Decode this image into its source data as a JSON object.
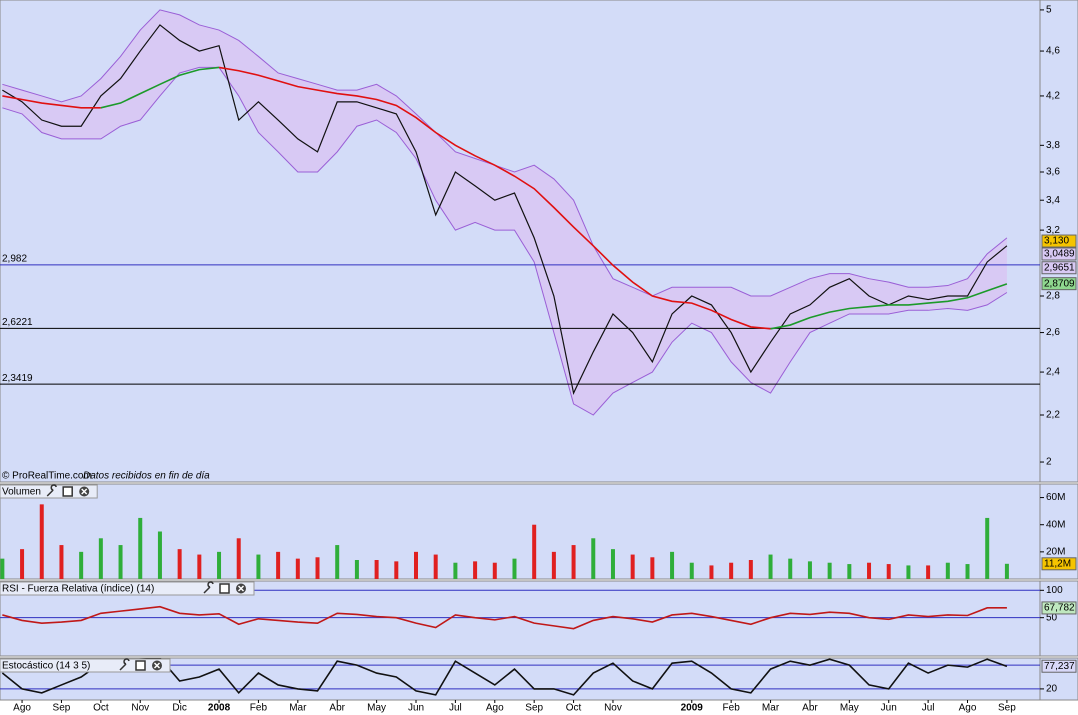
{
  "chart_data": [
    {
      "type": "line",
      "log": true,
      "credit": "© ProRealTime.com",
      "note": "Datos recibidos en fin de día",
      "x": [
        -0.5,
        0,
        0.5,
        1,
        1.5,
        2,
        2.5,
        3,
        3.5,
        4,
        4.5,
        5,
        5.5,
        6,
        6.5,
        7,
        7.5,
        8,
        8.5,
        9,
        9.5,
        10,
        10.5,
        11,
        11.5,
        12,
        12.5,
        13,
        13.5,
        14,
        14.5,
        15,
        15.5,
        16,
        16.5,
        17,
        17.5,
        18,
        18.5,
        19,
        19.5,
        20,
        20.5,
        21,
        21.5,
        22,
        22.5,
        23,
        23.5,
        24,
        24.5,
        25
      ],
      "xlim": [
        -0.56,
        25.84
      ],
      "ylim": [
        1.96,
        5.05
      ],
      "yticks": [
        2,
        {
          "value": 2.2,
          "label": "2,2"
        },
        {
          "value": 2.4,
          "label": "2,4"
        },
        {
          "value": 2.6,
          "label": "2,6"
        },
        {
          "value": 2.8,
          "label": "2,8"
        },
        {
          "value": 3.2,
          "label": "3,2"
        },
        {
          "value": 3.4,
          "label": "3,4"
        },
        {
          "value": 3.6,
          "label": "3,6"
        },
        {
          "value": 3.8,
          "label": "3,8"
        },
        {
          "value": 4.2,
          "label": "4,2"
        },
        {
          "value": 4.6,
          "label": "4,6"
        },
        5
      ],
      "band": {
        "color": "#9a5fd6",
        "fill": "#d8c9f4",
        "upper": [
          4.3,
          4.25,
          4.2,
          4.15,
          4.2,
          4.35,
          4.55,
          4.8,
          5.0,
          4.95,
          4.85,
          4.8,
          4.7,
          4.55,
          4.4,
          4.35,
          4.3,
          4.25,
          4.25,
          4.3,
          4.2,
          4.05,
          3.9,
          3.75,
          3.7,
          3.65,
          3.6,
          3.65,
          3.55,
          3.4,
          3.1,
          2.9,
          2.85,
          2.8,
          2.85,
          2.85,
          2.85,
          2.85,
          2.8,
          2.8,
          2.85,
          2.9,
          2.93,
          2.93,
          2.9,
          2.88,
          2.85,
          2.85,
          2.86,
          2.9,
          3.05,
          3.15
        ],
        "lower": [
          4.1,
          4.05,
          3.9,
          3.85,
          3.85,
          3.85,
          3.95,
          4.0,
          4.2,
          4.4,
          4.45,
          4.45,
          4.2,
          3.9,
          3.75,
          3.6,
          3.6,
          3.75,
          3.95,
          4.0,
          3.9,
          3.7,
          3.4,
          3.2,
          3.25,
          3.2,
          3.2,
          3.0,
          2.6,
          2.25,
          2.2,
          2.3,
          2.35,
          2.4,
          2.55,
          2.65,
          2.6,
          2.45,
          2.35,
          2.3,
          2.45,
          2.6,
          2.65,
          2.7,
          2.7,
          2.7,
          2.72,
          2.72,
          2.73,
          2.72,
          2.75,
          2.82
        ]
      },
      "series": [
        {
          "color": "#111111",
          "values": [
            4.25,
            4.15,
            4.0,
            3.95,
            3.95,
            4.2,
            4.35,
            4.6,
            4.85,
            4.7,
            4.6,
            4.65,
            4.0,
            4.15,
            4.0,
            3.85,
            3.75,
            4.15,
            4.15,
            4.1,
            4.05,
            3.75,
            3.3,
            3.6,
            3.5,
            3.4,
            3.45,
            3.15,
            2.8,
            2.3,
            2.5,
            2.7,
            2.6,
            2.45,
            2.7,
            2.8,
            2.75,
            2.6,
            2.4,
            2.55,
            2.7,
            2.75,
            2.85,
            2.9,
            2.8,
            2.75,
            2.8,
            2.78,
            2.8,
            2.8,
            3.0,
            3.1
          ]
        },
        {
          "color": "#e01010",
          "values": [
            4.2,
            4.17,
            4.14,
            4.12,
            4.1,
            4.1,
            null,
            null,
            null,
            null,
            null,
            4.45,
            4.42,
            4.38,
            4.33,
            4.28,
            4.25,
            4.22,
            4.2,
            4.17,
            4.12,
            4.02,
            3.9,
            3.8,
            3.72,
            3.65,
            3.57,
            3.48,
            3.35,
            3.22,
            3.1,
            2.98,
            2.88,
            2.8,
            2.77,
            2.76,
            2.72,
            2.67,
            2.63,
            2.62,
            null,
            null,
            null,
            null,
            null,
            null,
            null,
            null,
            null,
            null,
            null,
            null
          ]
        },
        {
          "color": "#1c9a2a",
          "values": [
            null,
            null,
            null,
            null,
            null,
            4.1,
            4.14,
            4.22,
            4.3,
            4.38,
            4.43,
            4.45,
            null,
            null,
            null,
            null,
            null,
            null,
            null,
            null,
            null,
            null,
            null,
            null,
            null,
            null,
            null,
            null,
            null,
            null,
            null,
            null,
            null,
            null,
            null,
            null,
            null,
            null,
            null,
            2.62,
            2.64,
            2.68,
            2.71,
            2.73,
            2.74,
            2.75,
            2.75,
            2.76,
            2.77,
            2.79,
            2.83,
            2.87
          ]
        }
      ],
      "levels": [
        {
          "value": 2.982,
          "label": "2,982",
          "color": "#3030c0"
        },
        {
          "value": 2.6221,
          "label": "2,6221",
          "color": "#000000"
        },
        {
          "value": 2.3419,
          "label": "2,3419",
          "color": "#000000"
        }
      ],
      "last_labels": [
        {
          "value": 3.13,
          "label": "3,130",
          "color": "#f5c400"
        },
        {
          "value": 3.0489,
          "label": "3,0489",
          "color": "#d8c9f4"
        },
        {
          "value": 2.9651,
          "label": "2,9651",
          "color": "#d8c9f4"
        },
        {
          "value": 2.8709,
          "label": "2,8709",
          "color": "#8fd88f"
        }
      ]
    },
    {
      "type": "bar",
      "title": "Volumen",
      "up_color": "#2fae3a",
      "down_color": "#e02020",
      "values": [
        15000000,
        22000000,
        55000000,
        25000000,
        20000000,
        30000000,
        25000000,
        45000000,
        35000000,
        22000000,
        18000000,
        20000000,
        30000000,
        18000000,
        20000000,
        15000000,
        16000000,
        25000000,
        14000000,
        14000000,
        13000000,
        20000000,
        18000000,
        12000000,
        13000000,
        12000000,
        15000000,
        40000000,
        20000000,
        25000000,
        30000000,
        22000000,
        18000000,
        16000000,
        20000000,
        12000000,
        10000000,
        12000000,
        14000000,
        18000000,
        15000000,
        13000000,
        12000000,
        11000000,
        12000000,
        11000000,
        10000000,
        10000000,
        12000000,
        11000000,
        45000000,
        11200000
      ],
      "ylim": [
        0,
        70000000
      ],
      "yticks": [
        {
          "value": 20000000,
          "label": "20M"
        },
        {
          "value": 40000000,
          "label": "40M"
        },
        {
          "value": 60000000,
          "label": "60M"
        }
      ],
      "last_labels": [
        {
          "value": 11200000,
          "label": "11,2M",
          "color": "#f5c400"
        }
      ]
    },
    {
      "type": "line",
      "title": "RSI - Fuerza Relativa (índice) (14)",
      "series": [
        {
          "color": "#c01818",
          "values": [
            55,
            45,
            40,
            42,
            45,
            58,
            62,
            66,
            70,
            58,
            55,
            57,
            38,
            48,
            45,
            42,
            40,
            58,
            56,
            52,
            50,
            40,
            32,
            55,
            50,
            46,
            52,
            40,
            35,
            30,
            45,
            52,
            48,
            42,
            55,
            58,
            52,
            45,
            38,
            50,
            58,
            56,
            60,
            58,
            50,
            47,
            55,
            52,
            55,
            54,
            68,
            68
          ]
        }
      ],
      "ylim": [
        -20,
        117
      ],
      "yticks": [
        50,
        100
      ],
      "grid": true,
      "grid_color": "#3030c0",
      "last_labels": [
        {
          "value": 67.782,
          "label": "67,782",
          "color": "#bfe8bf"
        }
      ]
    },
    {
      "type": "line",
      "title": "Estocástico (14 3 5)",
      "series": [
        {
          "color": "#111111",
          "values": [
            60,
            20,
            10,
            30,
            50,
            85,
            90,
            95,
            98,
            40,
            50,
            70,
            10,
            60,
            30,
            20,
            15,
            90,
            80,
            60,
            50,
            15,
            5,
            90,
            60,
            30,
            70,
            20,
            20,
            5,
            60,
            85,
            40,
            20,
            85,
            90,
            60,
            20,
            10,
            70,
            90,
            80,
            95,
            80,
            30,
            20,
            85,
            60,
            80,
            75,
            95,
            77
          ]
        }
      ],
      "ylim": [
        -8,
        98
      ],
      "yticks": [
        20
      ],
      "grid": true,
      "grid_color": "#3030c0",
      "ref_lines": [
        80
      ],
      "last_labels": [
        {
          "value": 77.237,
          "label": "77,237",
          "color": "#d8d8f8"
        }
      ],
      "xticks": [
        {
          "value": 0,
          "label": "Ago"
        },
        {
          "value": 1,
          "label": "Sep"
        },
        {
          "value": 2,
          "label": "Oct"
        },
        {
          "value": 3,
          "label": "Nov"
        },
        {
          "value": 4,
          "label": "Dic"
        },
        {
          "value": 5,
          "label": "2008"
        },
        {
          "value": 6,
          "label": "Feb"
        },
        {
          "value": 7,
          "label": "Mar"
        },
        {
          "value": 8,
          "label": "Abr"
        },
        {
          "value": 9,
          "label": "May"
        },
        {
          "value": 10,
          "label": "Jun"
        },
        {
          "value": 11,
          "label": "Jul"
        },
        {
          "value": 12,
          "label": "Ago"
        },
        {
          "value": 13,
          "label": "Sep"
        },
        {
          "value": 14,
          "label": "Oct"
        },
        {
          "value": 15,
          "label": "Nov"
        },
        {
          "value": 17,
          "label": "2009"
        },
        {
          "value": 18,
          "label": "Feb"
        },
        {
          "value": 19,
          "label": "Mar"
        },
        {
          "value": 20,
          "label": "Abr"
        },
        {
          "value": 21,
          "label": "May"
        },
        {
          "value": 22,
          "label": "Jun"
        },
        {
          "value": 23,
          "label": "Jul"
        },
        {
          "value": 24,
          "label": "Ago"
        },
        {
          "value": 25,
          "label": "Sep"
        }
      ]
    }
  ]
}
